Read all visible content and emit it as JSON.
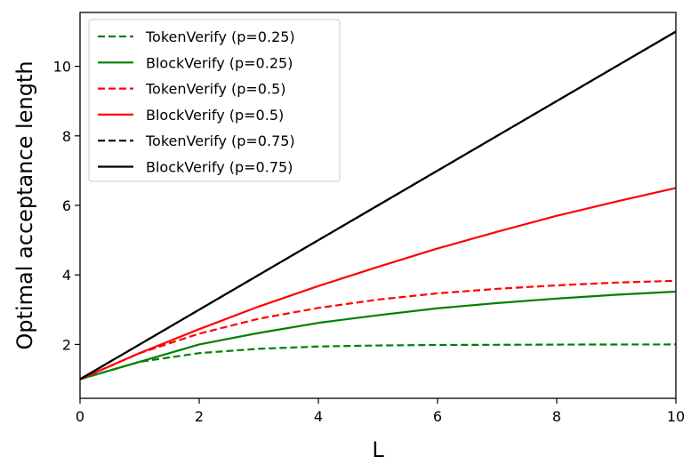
{
  "chart_data": {
    "type": "line",
    "xlabel": "L",
    "ylabel": "Optimal acceptance length",
    "xlim": [
      0,
      10
    ],
    "ylim": [
      0.45,
      11.55
    ],
    "xticks": [
      0,
      2,
      4,
      6,
      8,
      10
    ],
    "yticks": [
      2,
      4,
      6,
      8,
      10
    ],
    "grid": false,
    "legend_position": "upper-left",
    "series": [
      {
        "name": "TokenVerify (p=0.25)",
        "color": "#008000",
        "dash": "dashed",
        "x": [
          0,
          1,
          2,
          3,
          4,
          5,
          6,
          7,
          8,
          9,
          10
        ],
        "y": [
          1.0,
          1.5,
          1.75,
          1.875,
          1.94,
          1.97,
          1.985,
          1.99,
          1.995,
          1.998,
          2.0
        ]
      },
      {
        "name": "BlockVerify (p=0.25)",
        "color": "#008000",
        "dash": "solid",
        "x": [
          0,
          1,
          2,
          3,
          4,
          5,
          6,
          7,
          8,
          9,
          10
        ],
        "y": [
          1.0,
          1.5,
          2.0,
          2.33,
          2.62,
          2.84,
          3.04,
          3.19,
          3.32,
          3.43,
          3.52
        ]
      },
      {
        "name": "TokenVerify (p=0.5)",
        "color": "#ff0000",
        "dash": "dashed",
        "x": [
          0,
          1,
          2,
          3,
          4,
          5,
          6,
          7,
          8,
          9,
          10
        ],
        "y": [
          1.0,
          1.75,
          2.31,
          2.74,
          3.05,
          3.29,
          3.47,
          3.6,
          3.7,
          3.78,
          3.83
        ]
      },
      {
        "name": "BlockVerify (p=0.5)",
        "color": "#ff0000",
        "dash": "solid",
        "x": [
          0,
          1,
          2,
          3,
          4,
          5,
          6,
          7,
          8,
          9,
          10
        ],
        "y": [
          1.0,
          1.75,
          2.44,
          3.09,
          3.68,
          4.23,
          4.76,
          5.24,
          5.7,
          6.11,
          6.5
        ]
      },
      {
        "name": "TokenVerify (p=0.75)",
        "color": "#000000",
        "dash": "dashed",
        "x": [
          0,
          1,
          2,
          3,
          4,
          5,
          6,
          7,
          8,
          9,
          10
        ],
        "y": [
          1,
          2,
          3,
          4,
          5,
          6,
          7,
          8,
          9,
          10,
          11
        ]
      },
      {
        "name": "BlockVerify (p=0.75)",
        "color": "#000000",
        "dash": "solid",
        "x": [
          0,
          1,
          2,
          3,
          4,
          5,
          6,
          7,
          8,
          9,
          10
        ],
        "y": [
          1,
          2,
          3,
          4,
          5,
          6,
          7,
          8,
          9,
          10,
          11
        ]
      }
    ]
  }
}
